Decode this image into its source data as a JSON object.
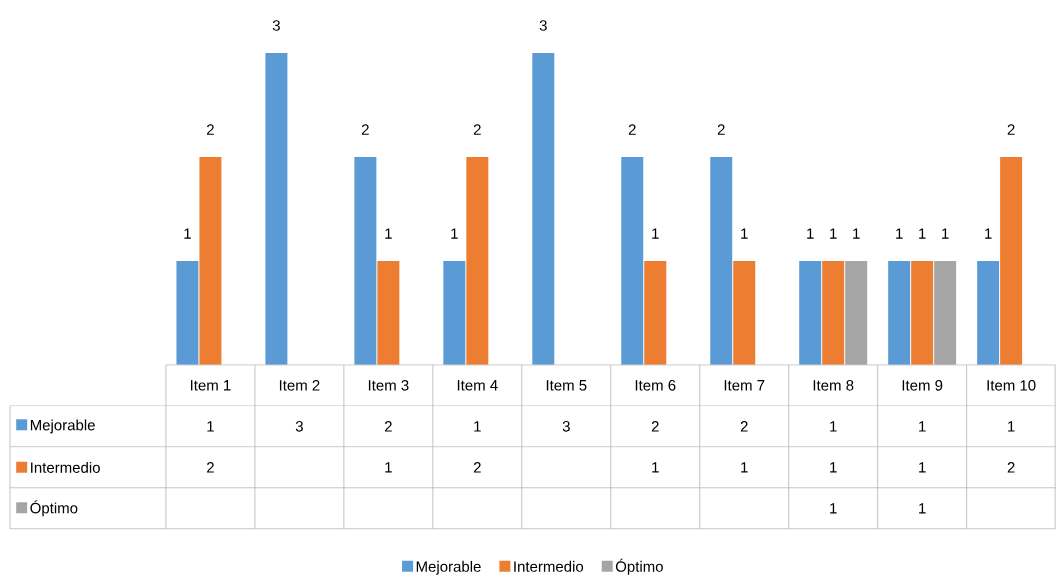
{
  "chart_data": {
    "type": "bar",
    "categories": [
      "Item 1",
      "Item 2",
      "Item 3",
      "Item 4",
      "Item 5",
      "Item 6",
      "Item 7",
      "Item 8",
      "Item 9",
      "Item 10"
    ],
    "series": [
      {
        "name": "Mejorable",
        "color": "#5b9bd5",
        "values": [
          1,
          3,
          2,
          1,
          3,
          2,
          2,
          1,
          1,
          1
        ],
        "value_labels": [
          "1",
          "3",
          "2",
          "1",
          "3",
          "2",
          "2",
          "1",
          "1",
          "1"
        ]
      },
      {
        "name": "Intermedio",
        "color": "#ed7d31",
        "values": [
          2,
          null,
          1,
          2,
          null,
          1,
          1,
          1,
          1,
          2
        ],
        "value_labels": [
          "2",
          null,
          "1",
          "2",
          null,
          "1",
          "1",
          "1",
          "1",
          "2"
        ]
      },
      {
        "name": "Óptimo",
        "color": "#a5a5a5",
        "values": [
          null,
          null,
          null,
          null,
          null,
          null,
          null,
          1,
          1,
          null
        ],
        "value_labels": [
          null,
          null,
          null,
          null,
          null,
          null,
          null,
          "1",
          "1",
          null
        ]
      }
    ],
    "data_labels": true,
    "legend": "bottom"
  }
}
